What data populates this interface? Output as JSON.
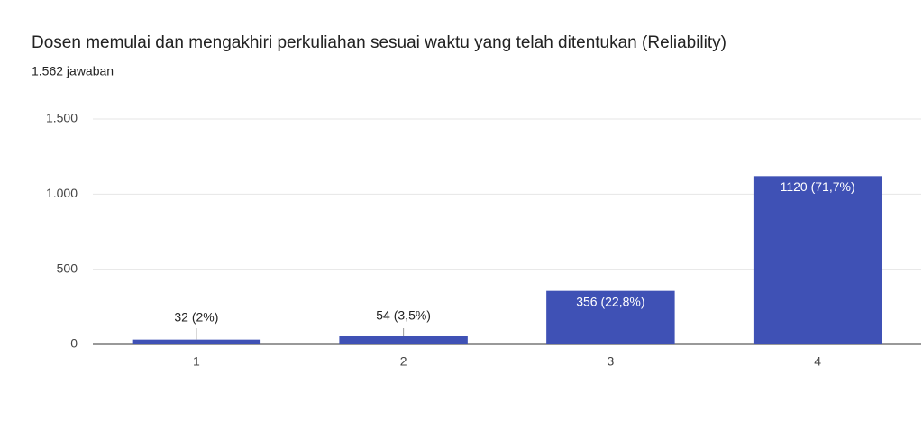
{
  "chart_data": {
    "type": "bar",
    "title": "Dosen memulai dan mengakhiri perkuliahan sesuai waktu yang telah ditentukan (Reliability)",
    "subtitle": "1.562 jawaban",
    "categories": [
      "1",
      "2",
      "3",
      "4"
    ],
    "values": [
      32,
      54,
      356,
      1120
    ],
    "value_labels": [
      "32 (2%)",
      "54 (3,5%)",
      "356 (22,8%)",
      "1120 (71,7%)"
    ],
    "color": "#3f51b5",
    "ylim": [
      0,
      1500
    ],
    "yticks": [
      0,
      500,
      {
        "value": 1000,
        "label": "1.000"
      },
      {
        "value": 1500,
        "label": "1.500"
      }
    ],
    "grid": true
  }
}
